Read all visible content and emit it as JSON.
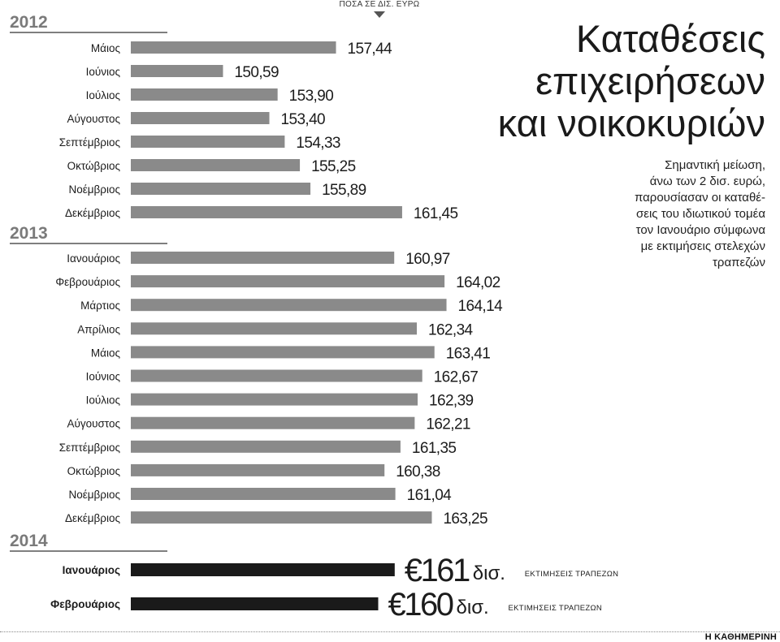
{
  "unit_note": "ΠΟΣΑ ΣΕ ΔΙΣ. ΕΥΡΩ",
  "title_lines": [
    "Καταθέσεις",
    "επιχειρήσεων",
    "και νοικοκυριών"
  ],
  "subtitle_lines": [
    "Σημαντική μείωση,",
    "άνω των 2 δισ. ευρώ,",
    "παρουσίασαν οι καταθέ-",
    "σεις του ιδιωτικού τομέα",
    "τον Ιανουάριο σύμφωνα",
    "με εκτιμήσεις στελεχών",
    "τραπεζών"
  ],
  "credit": "Η ΚΑΘΗΜΕΡΙΝΗ",
  "colors": {
    "bar": "#8a8a8a",
    "estimate_bar": "#1a1a1a",
    "text": "#1c1c1c",
    "divider": "#555555"
  },
  "chart_data": {
    "type": "bar",
    "orientation": "horizontal",
    "unit": "ΠΟΣΑ ΣΕ ΔΙΣ. ΕΥΡΩ",
    "groups": [
      {
        "year": "2012",
        "bars": [
          {
            "label": "Μάιος",
            "value": 157.44,
            "value_label": "157,44"
          },
          {
            "label": "Ιούνιος",
            "value": 150.59,
            "value_label": "150,59"
          },
          {
            "label": "Ιούλιος",
            "value": 153.9,
            "value_label": "153,90"
          },
          {
            "label": "Αύγουστος",
            "value": 153.4,
            "value_label": "153,40"
          },
          {
            "label": "Σεπτέμβριος",
            "value": 154.33,
            "value_label": "154,33"
          },
          {
            "label": "Οκτώβριος",
            "value": 155.25,
            "value_label": "155,25"
          },
          {
            "label": "Νοέμβριος",
            "value": 155.89,
            "value_label": "155,89"
          },
          {
            "label": "Δεκέμβριος",
            "value": 161.45,
            "value_label": "161,45"
          }
        ]
      },
      {
        "year": "2013",
        "bars": [
          {
            "label": "Ιανουάριος",
            "value": 160.97,
            "value_label": "160,97"
          },
          {
            "label": "Φεβρουάριος",
            "value": 164.02,
            "value_label": "164,02"
          },
          {
            "label": "Μάρτιος",
            "value": 164.14,
            "value_label": "164,14"
          },
          {
            "label": "Απρίλιος",
            "value": 162.34,
            "value_label": "162,34"
          },
          {
            "label": "Μάιος",
            "value": 163.41,
            "value_label": "163,41"
          },
          {
            "label": "Ιούνιος",
            "value": 162.67,
            "value_label": "162,67"
          },
          {
            "label": "Ιούλιος",
            "value": 162.39,
            "value_label": "162,39"
          },
          {
            "label": "Αύγουστος",
            "value": 162.21,
            "value_label": "162,21"
          },
          {
            "label": "Σεπτέμβριος",
            "value": 161.35,
            "value_label": "161,35"
          },
          {
            "label": "Οκτώβριος",
            "value": 160.38,
            "value_label": "160,38"
          },
          {
            "label": "Νοέμβριος",
            "value": 161.04,
            "value_label": "161,04"
          },
          {
            "label": "Δεκέμβριος",
            "value": 163.25,
            "value_label": "163,25"
          }
        ]
      },
      {
        "year": "2014",
        "estimate": true,
        "bars": [
          {
            "label": "Ιανουάριος",
            "value": 161,
            "amount": "€161",
            "unit_text": "δισ.",
            "note": "ΕΚΤΙΜΗΣΕΙΣ ΤΡΑΠΕΖΩΝ"
          },
          {
            "label": "Φεβρουάριος",
            "value": 160,
            "amount": "€160",
            "unit_text": "δισ.",
            "note": "ΕΚΤΙΜΗΣΕΙΣ ΤΡΑΠΕΖΩΝ"
          }
        ]
      }
    ]
  }
}
